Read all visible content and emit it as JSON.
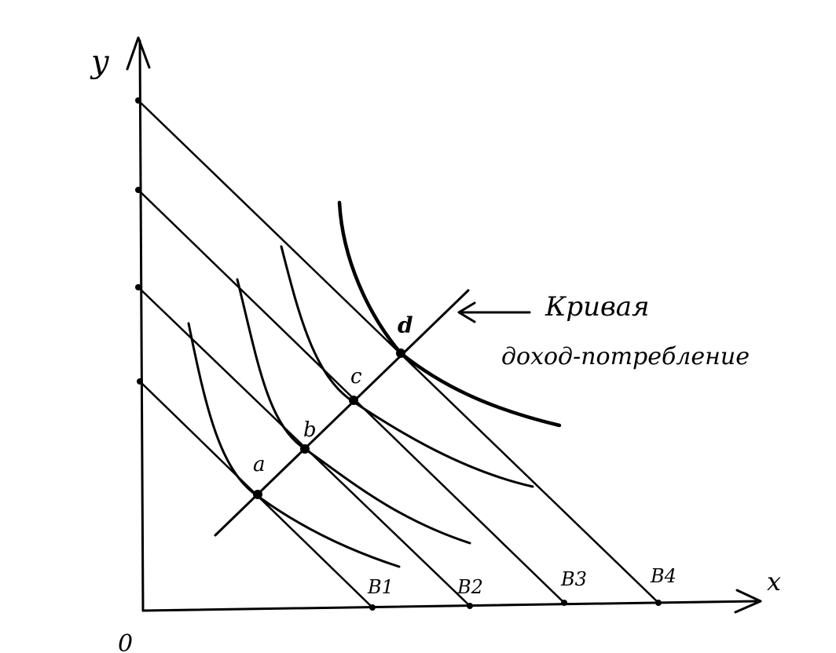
{
  "axes": {
    "x_label": "x",
    "y_label": "y",
    "origin_label": "0"
  },
  "budget_lines": [
    "B1",
    "B2",
    "B3",
    "B4"
  ],
  "points": [
    "a",
    "b",
    "c",
    "d"
  ],
  "annotation": {
    "line1": "Кривая",
    "line2": "доход-потребление"
  }
}
